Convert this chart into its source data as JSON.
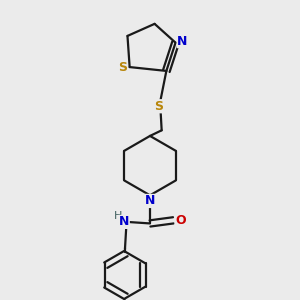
{
  "background_color": "#ebebeb",
  "bond_color": "#1a1a1a",
  "S_color": "#b8860b",
  "N_color": "#0000cc",
  "O_color": "#cc0000",
  "H_color": "#406060",
  "figsize": [
    3.0,
    3.0
  ],
  "dpi": 100,
  "xlim": [
    0.25,
    0.75
  ],
  "ylim": [
    0.02,
    0.98
  ]
}
